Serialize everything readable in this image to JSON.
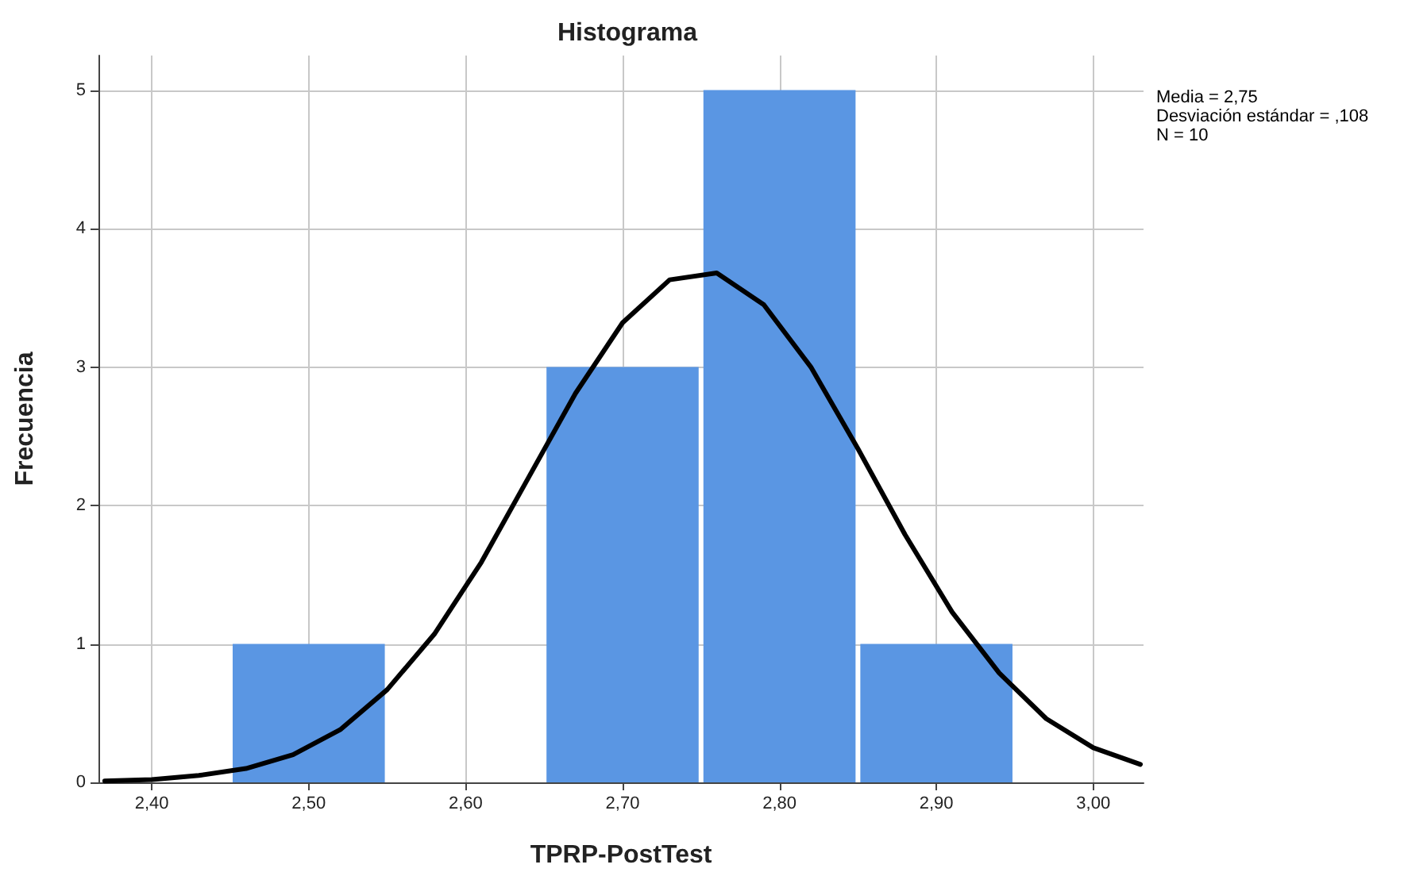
{
  "chart_data": {
    "type": "histogram",
    "title": "Histograma",
    "xlabel": "TPRP-PostTest",
    "ylabel": "Frecuencia",
    "annotations": [
      "Media = 2,75",
      "Desviación estándar = ,108",
      "N = 10"
    ],
    "series": [
      {
        "color": "#5a96e3",
        "bins": [
          2.45,
          2.55,
          2.65,
          2.75,
          2.85,
          2.95
        ],
        "values": [
          1,
          0,
          3,
          5,
          1
        ]
      },
      {
        "type": "line",
        "color": "#000000",
        "x": [
          2.37,
          2.4,
          2.43,
          2.46,
          2.49,
          2.52,
          2.55,
          2.58,
          2.61,
          2.64,
          2.67,
          2.7,
          2.73,
          2.76,
          2.79,
          2.82,
          2.85,
          2.88,
          2.91,
          2.94,
          2.97,
          3.0,
          3.03
        ],
        "values": [
          0.01,
          0.02,
          0.05,
          0.1,
          0.2,
          0.38,
          0.67,
          1.07,
          1.59,
          2.2,
          2.81,
          3.32,
          3.63,
          3.68,
          3.45,
          3.0,
          2.41,
          1.79,
          1.23,
          0.79,
          0.46,
          0.25,
          0.13
        ]
      }
    ],
    "xlim": [
      2.366,
      3.032
    ],
    "xticks": [
      {
        "value": 2.4,
        "label": "2,40"
      },
      {
        "value": 2.5,
        "label": "2,50"
      },
      {
        "value": 2.6,
        "label": "2,60"
      },
      {
        "value": 2.7,
        "label": "2,70"
      },
      {
        "value": 2.8,
        "label": "2,80"
      },
      {
        "value": 2.9,
        "label": "2,90"
      },
      {
        "value": 3.0,
        "label": "3,00"
      }
    ],
    "ylim": [
      0,
      5.25
    ],
    "yticks": [
      0,
      1,
      2,
      3,
      4,
      5
    ],
    "grid": true,
    "line_style": "solid",
    "marker": "none"
  }
}
